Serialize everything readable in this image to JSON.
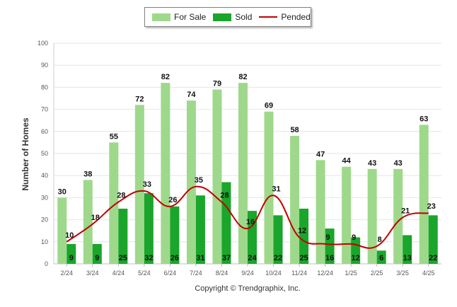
{
  "legend": {
    "for_sale": "For Sale",
    "sold": "Sold",
    "pended": "Pended"
  },
  "footer": {
    "copyright": "Copyright © Trendgraphix, Inc."
  },
  "colors": {
    "for_sale": "#9ed98b",
    "sold": "#1aa52b",
    "pended": "#c00000"
  },
  "chart_data": {
    "type": "bar",
    "categories": [
      "2/24",
      "3/24",
      "4/24",
      "5/24",
      "6/24",
      "7/24",
      "8/24",
      "9/24",
      "10/24",
      "11/24",
      "12/24",
      "1/25",
      "2/25",
      "3/25",
      "4/25"
    ],
    "series": [
      {
        "name": "For Sale",
        "type": "bar",
        "values": [
          30,
          38,
          55,
          72,
          82,
          74,
          79,
          82,
          69,
          58,
          47,
          44,
          43,
          43,
          63
        ]
      },
      {
        "name": "Sold",
        "type": "bar",
        "values": [
          9,
          9,
          25,
          32,
          26,
          31,
          37,
          24,
          22,
          25,
          16,
          12,
          6,
          13,
          22
        ]
      },
      {
        "name": "Pended",
        "type": "line",
        "values": [
          10,
          18,
          28,
          33,
          26,
          35,
          28,
          16,
          31,
          12,
          9,
          9,
          8,
          21,
          23
        ]
      }
    ],
    "ylabel": "Number of Homes",
    "ylim": [
      0,
      100
    ],
    "yticks": [
      0,
      10,
      20,
      30,
      40,
      50,
      60,
      70,
      80,
      90,
      100
    ],
    "grid": true,
    "legend_position": "top-center"
  }
}
